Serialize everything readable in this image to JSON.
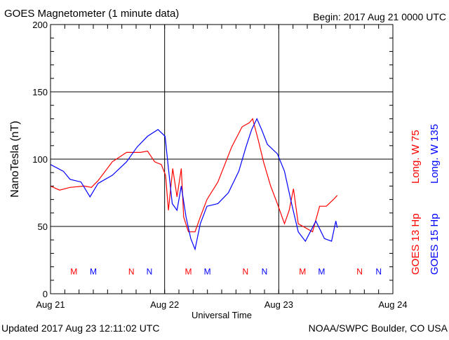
{
  "chart_data": {
    "type": "line",
    "title": "GOES Magnetometer (1 minute data)",
    "begin_label": "Begin:  2017 Aug 21 0000 UTC",
    "xlabel": "Universal Time",
    "ylabel": "NanoTesla (nT)",
    "x_unit": "hours since 2017 Aug 21 0000 UTC",
    "xlim": [
      0,
      72
    ],
    "ylim": [
      0,
      200
    ],
    "yticks": [
      0,
      50,
      100,
      150,
      200
    ],
    "xticks": [
      {
        "x": 0,
        "label": "Aug 21"
      },
      {
        "x": 24,
        "label": "Aug 22"
      },
      {
        "x": 48,
        "label": "Aug 23"
      },
      {
        "x": 72,
        "label": "Aug 24"
      }
    ],
    "grid": true,
    "legend_placement": "right, vertical text",
    "series": [
      {
        "name": "GOES 13 Hp",
        "legend": [
          "GOES 13 Hp",
          "Long. W 75"
        ],
        "color": "#ff0000",
        "x": [
          0,
          1.9,
          4.1,
          7.1,
          8.6,
          10,
          13,
          16,
          18.9,
          20.4,
          21.9,
          23.3,
          24.2,
          24.8,
          25.7,
          26.6,
          27.5,
          28,
          29,
          30.4,
          31.5,
          32.9,
          35.2,
          38.1,
          40.3,
          41.8,
          42.5,
          43.7,
          44.8,
          46.3,
          47.7,
          49.2,
          50.2,
          51.1,
          52.1,
          53.6,
          55.1,
          56.6,
          58,
          59.5,
          60.3
        ],
        "y": [
          80,
          77,
          79,
          80,
          79,
          84,
          98,
          105,
          105,
          106,
          98,
          96,
          88,
          62,
          93,
          72,
          93,
          57,
          46,
          46,
          57,
          70,
          83,
          109,
          124,
          127,
          130,
          114,
          98,
          80,
          67,
          52,
          62,
          78,
          52,
          49,
          46,
          65,
          65,
          70,
          73
        ]
      },
      {
        "name": "GOES 15 Hp",
        "legend": [
          "GOES 15 Hp",
          "Long. W 135"
        ],
        "color": "#0000ff",
        "x": [
          0,
          2.7,
          4.1,
          6.4,
          8.3,
          10,
          13,
          16,
          18.2,
          20.4,
          22.6,
          24.1,
          24.8,
          25.6,
          26.6,
          27.5,
          28.5,
          29.5,
          30.4,
          31.5,
          32.9,
          35.2,
          37.4,
          39.6,
          41.1,
          42.3,
          43.4,
          44.4,
          45.6,
          47.7,
          49.2,
          50.7,
          52.1,
          53.6,
          55.8,
          57.6,
          59.1,
          60,
          60.3
        ],
        "y": [
          96,
          91,
          85,
          83,
          72,
          82,
          88,
          98,
          109,
          117,
          122,
          117,
          93,
          67,
          62,
          80,
          57,
          41,
          33,
          52,
          65,
          67,
          75,
          91,
          109,
          122,
          130,
          122,
          111,
          104,
          91,
          67,
          46,
          39,
          54,
          41,
          39,
          54,
          49
        ]
      }
    ],
    "markers": [
      {
        "label": "M",
        "series": 0,
        "x": 4.9
      },
      {
        "label": "M",
        "series": 1,
        "x": 9
      },
      {
        "label": "N",
        "series": 0,
        "x": 17
      },
      {
        "label": "N",
        "series": 1,
        "x": 20.8
      },
      {
        "label": "M",
        "series": 0,
        "x": 29
      },
      {
        "label": "M",
        "series": 1,
        "x": 33
      },
      {
        "label": "N",
        "series": 0,
        "x": 41
      },
      {
        "label": "N",
        "series": 1,
        "x": 45
      },
      {
        "label": "M",
        "series": 0,
        "x": 53
      },
      {
        "label": "M",
        "series": 1,
        "x": 57
      },
      {
        "label": "N",
        "series": 0,
        "x": 65
      },
      {
        "label": "N",
        "series": 1,
        "x": 69
      }
    ],
    "marker_value": 17
  },
  "footer": {
    "updated": "Updated 2017 Aug 23 12:11:02 UTC",
    "credit": "NOAA/SWPC Boulder, CO USA"
  }
}
